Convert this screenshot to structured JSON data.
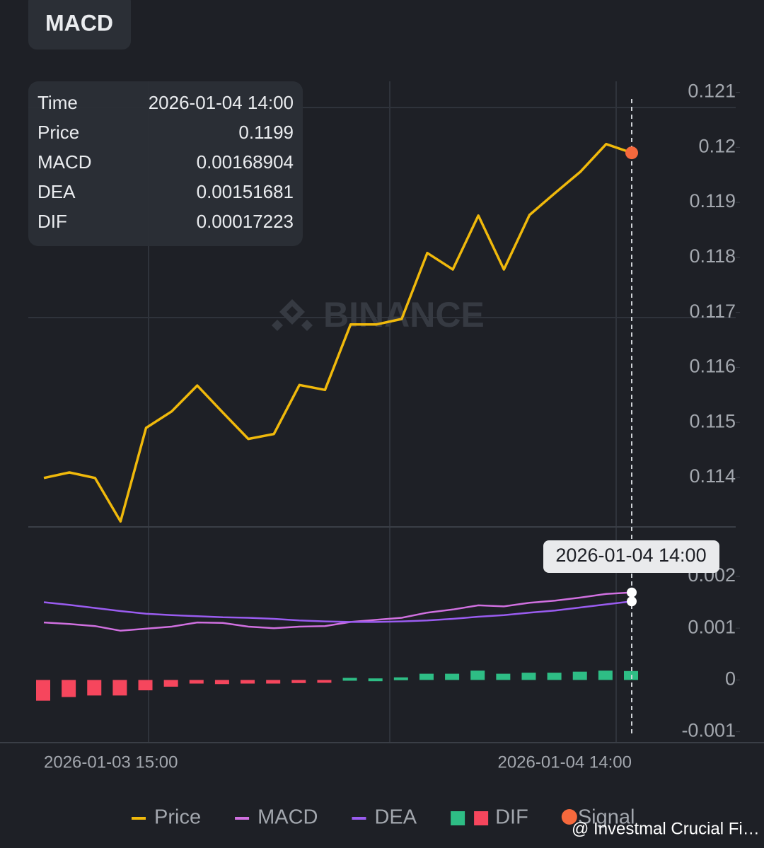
{
  "header": {
    "button": "MACD"
  },
  "watermark": "BINANCE",
  "footer_credit": "@ Investmal Crucial Fi…",
  "tooltip": {
    "time_label": "Time"
  },
  "chart_data": [
    {
      "type": "line",
      "series": [
        {
          "name": "Price",
          "color": "#f0b90b",
          "values": [
            0.11399,
            0.11409,
            0.11399,
            0.1132,
            0.1149,
            0.1152,
            0.11567,
            0.11518,
            0.1147,
            0.11479,
            0.11568,
            0.11559,
            0.11678,
            0.11678,
            0.11688,
            0.11808,
            0.11778,
            0.11876,
            0.11778,
            0.11877,
            0.11917,
            0.11956,
            0.12006,
            0.1199
          ]
        }
      ],
      "signal": {
        "name": "Signal",
        "color": "#f5693d"
      },
      "ylim": [
        0.1131,
        0.1212
      ],
      "yticks": [
        0.114,
        0.115,
        0.116,
        0.117,
        0.118,
        0.119,
        0.12,
        0.121
      ]
    },
    {
      "type": "macd",
      "categories": [
        "2026-01-03 15:00",
        null,
        null,
        null,
        null,
        null,
        null,
        null,
        null,
        null,
        null,
        null,
        null,
        null,
        null,
        null,
        null,
        null,
        null,
        null,
        null,
        null,
        null,
        "2026-01-04 14:00"
      ],
      "series": [
        {
          "name": "MACD",
          "color": "#d070e0",
          "kind": "line",
          "values": [
            0.00111,
            0.00108,
            0.00104,
            0.00095,
            0.00099,
            0.00103,
            0.00111,
            0.0011,
            0.00103,
            0.001,
            0.00103,
            0.00104,
            0.00112,
            0.00116,
            0.0012,
            0.0013,
            0.00136,
            0.00144,
            0.00142,
            0.00149,
            0.00153,
            0.00159,
            0.00166,
            0.00168904
          ]
        },
        {
          "name": "DEA",
          "color": "#9a5cf0",
          "kind": "line",
          "values": [
            0.0015,
            0.00145,
            0.00139,
            0.00133,
            0.00128,
            0.00125,
            0.00123,
            0.00121,
            0.0012,
            0.00118,
            0.00115,
            0.00113,
            0.00112,
            0.00112,
            0.00113,
            0.00115,
            0.00118,
            0.00122,
            0.00125,
            0.0013,
            0.00134,
            0.0014,
            0.00146,
            0.00151681
          ]
        },
        {
          "name": "DIF",
          "kind": "bar",
          "up_color": "#2ebd85",
          "down_color": "#f6465d",
          "values": [
            -0.0004,
            -0.00033,
            -0.0003,
            -0.0003,
            -0.0002,
            -0.00013,
            -7e-05,
            -8e-05,
            -7e-05,
            -7e-05,
            -6e-05,
            -5e-05,
            4e-05,
            3e-05,
            5e-05,
            0.00012,
            0.00012,
            0.00018,
            0.00012,
            0.00014,
            0.00014,
            0.00016,
            0.00018,
            0.00017223
          ]
        }
      ],
      "ylim": [
        -0.00121,
        0.00275
      ],
      "yticks": [
        -0.001,
        0,
        0.001,
        0.002
      ]
    }
  ]
}
